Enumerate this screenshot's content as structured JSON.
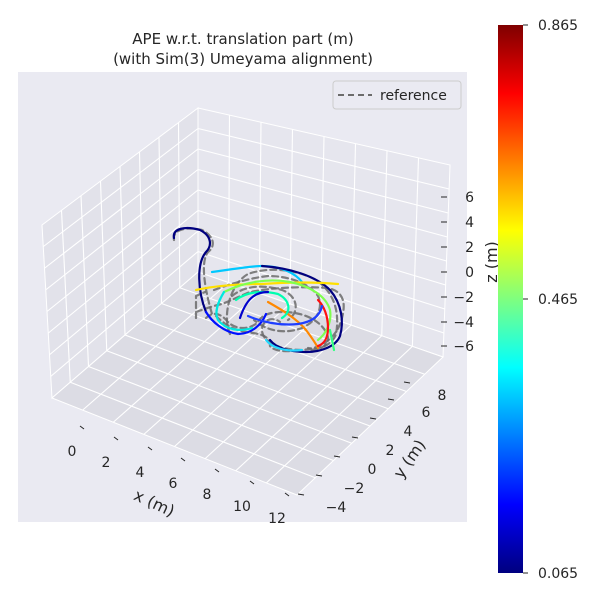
{
  "chart_data": {
    "type": "line",
    "title_line1": "APE w.r.t. translation part (m)",
    "title_line2": "(with Sim(3) Umeyama alignment)",
    "xlabel": "x (m)",
    "ylabel": "y (m)",
    "zlabel": "z (m)",
    "x_ticks": [
      "0",
      "2",
      "4",
      "6",
      "8",
      "10",
      "12"
    ],
    "y_ticks": [
      "−4",
      "−2",
      "0",
      "2",
      "4",
      "6",
      "8"
    ],
    "z_ticks": [
      "6",
      "4",
      "2",
      "0",
      "−2",
      "−4",
      "−6"
    ],
    "legend": {
      "label": "reference",
      "placement": "upper right",
      "style": "dashed",
      "color": "#6b6b6b"
    },
    "colorbar": {
      "colormap": "jet",
      "min": 0.065,
      "mid": 0.465,
      "max": 0.865,
      "tick_labels": [
        "0.865",
        "0.465",
        "0.065"
      ]
    },
    "grid": true,
    "pane_color": "#e5e5ee",
    "series": [
      {
        "name": "reference",
        "style": "dashed",
        "color": "#6b6b6b"
      },
      {
        "style": "solid",
        "color_by": "APE"
      }
    ]
  }
}
